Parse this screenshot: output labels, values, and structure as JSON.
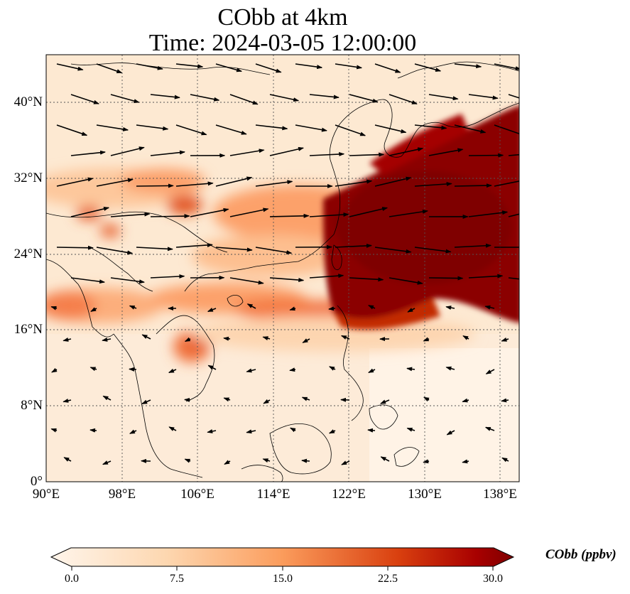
{
  "title": {
    "line1": "CObb at 4km",
    "line2": "Time: 2024-03-05 12:00:00"
  },
  "map": {
    "lon_ticks": [
      "90°E",
      "98°E",
      "106°E",
      "114°E",
      "122°E",
      "130°E",
      "138°E"
    ],
    "lat_ticks": [
      "40°N",
      "32°N",
      "24°N",
      "16°N",
      "8°N",
      "0°"
    ],
    "lon_range": [
      90,
      140
    ],
    "lat_range": [
      0,
      45
    ],
    "gridlines": "dotted"
  },
  "colorbar": {
    "label": "CObb (ppbv)",
    "ticks": [
      "0.0",
      "7.5",
      "15.0",
      "22.5",
      "30.0"
    ],
    "range": [
      0,
      30
    ],
    "colormap": [
      "#fff5eb",
      "#fdd0a2",
      "#fd8d3c",
      "#d94801",
      "#8c0000",
      "#7f0000"
    ]
  }
}
